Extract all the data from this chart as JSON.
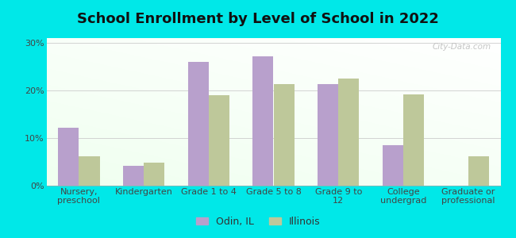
{
  "title": "School Enrollment by Level of School in 2022",
  "categories": [
    "Nursery,\npreschool",
    "Kindergarten",
    "Grade 1 to 4",
    "Grade 5 to 8",
    "Grade 9 to\n12",
    "College\nundergrad",
    "Graduate or\nprofessional"
  ],
  "odin_values": [
    12.2,
    4.2,
    26.0,
    27.2,
    21.3,
    8.5,
    0.0
  ],
  "illinois_values": [
    6.2,
    4.8,
    19.0,
    21.3,
    22.5,
    19.2,
    6.2
  ],
  "odin_color": "#b8a0cc",
  "illinois_color": "#bec89a",
  "background_color": "#00e8e8",
  "ylabel_ticks": [
    "0%",
    "10%",
    "20%",
    "30%"
  ],
  "ytick_values": [
    0,
    10,
    20,
    30
  ],
  "ylim": [
    0,
    31
  ],
  "legend_labels": [
    "Odin, IL",
    "Illinois"
  ],
  "title_fontsize": 13,
  "tick_fontsize": 8,
  "legend_fontsize": 9,
  "bar_width": 0.32,
  "watermark_text": "City-Data.com"
}
